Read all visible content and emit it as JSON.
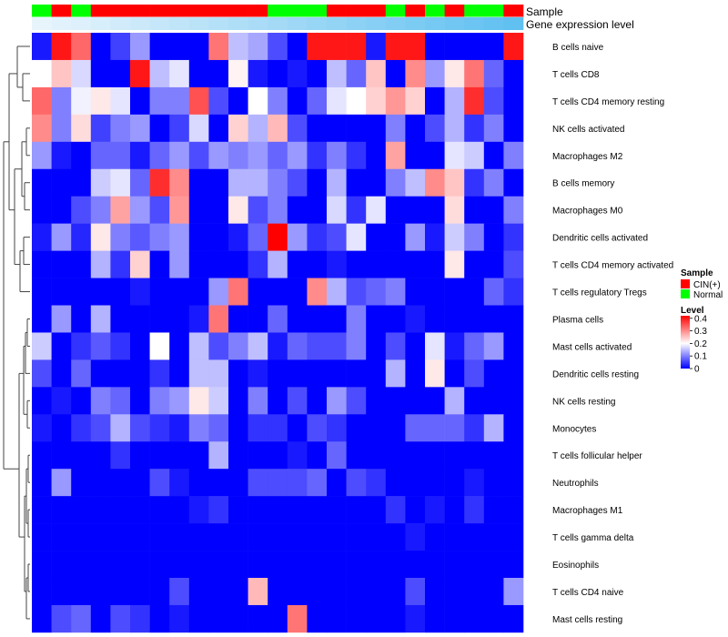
{
  "chart_data": {
    "type": "heatmap",
    "title": "",
    "annotations": {
      "sample_label": "Sample",
      "gene_label": "Gene expression level"
    },
    "legend": {
      "position": "right",
      "sample": {
        "title": "Sample",
        "items": [
          {
            "label": "CIN(+)",
            "color": "#FF0000"
          },
          {
            "label": "Normal",
            "color": "#00FF00"
          }
        ]
      },
      "level": {
        "title": "Level",
        "ticks": [
          "0.4",
          "0.3",
          "0.2",
          "0.1",
          "0"
        ],
        "tick_values": [
          0.4,
          0.3,
          0.2,
          0.1,
          0
        ],
        "range": [
          0,
          0.42
        ]
      }
    },
    "colors": {
      "low": "#0000FF",
      "mid": "#FFFFFF",
      "high": "#FF0000",
      "mid_value": 0.2,
      "max_value": 0.42
    },
    "samples": [
      "Normal",
      "CIN(+)",
      "Normal",
      "CIN(+)",
      "CIN(+)",
      "CIN(+)",
      "CIN(+)",
      "CIN(+)",
      "CIN(+)",
      "CIN(+)",
      "CIN(+)",
      "CIN(+)",
      "Normal",
      "Normal",
      "Normal",
      "CIN(+)",
      "CIN(+)",
      "CIN(+)",
      "Normal",
      "CIN(+)",
      "Normal",
      "CIN(+)",
      "Normal",
      "Normal",
      "CIN(+)"
    ],
    "gene_expression": [
      0.0,
      0.04,
      0.08,
      0.12,
      0.16,
      0.2,
      0.24,
      0.28,
      0.32,
      0.36,
      0.4,
      0.44,
      0.48,
      0.52,
      0.56,
      0.6,
      0.64,
      0.68,
      0.72,
      0.76,
      0.8,
      0.84,
      0.88,
      0.92,
      0.96
    ],
    "rows": [
      "B cells naive",
      "T cells CD8",
      "T cells CD4 memory resting",
      "NK cells activated",
      "Macrophages M2",
      "B cells memory",
      "Macrophages M0",
      "Dendritic cells activated",
      "T cells CD4 memory activated",
      "T cells regulatory  Tregs",
      "Plasma cells",
      "Mast cells activated",
      "Dendritic cells resting",
      "NK cells resting",
      "Monocytes",
      "T cells follicular helper",
      "Neutrophils",
      "Macrophages M1",
      "T cells gamma delta",
      "Eosinophils",
      "T cells CD4 naive",
      "Mast cells resting"
    ],
    "values": [
      [
        0.02,
        0.4,
        0.33,
        0.0,
        0.05,
        0.12,
        0.0,
        0.0,
        0.0,
        0.32,
        0.15,
        0.13,
        0.06,
        0.0,
        0.4,
        0.4,
        0.4,
        0.02,
        0.4,
        0.4,
        0.0,
        0.0,
        0.0,
        0.0,
        0.4
      ],
      [
        0.2,
        0.25,
        0.17,
        0.0,
        0.0,
        0.4,
        0.15,
        0.18,
        0.0,
        0.0,
        0.21,
        0.02,
        0.0,
        0.02,
        0.0,
        0.15,
        0.08,
        0.25,
        0.0,
        0.3,
        0.12,
        0.22,
        0.32,
        0.08,
        0.0
      ],
      [
        0.33,
        0.1,
        0.19,
        0.22,
        0.18,
        0.0,
        0.1,
        0.1,
        0.35,
        0.06,
        0.0,
        0.2,
        0.1,
        0.0,
        0.08,
        0.18,
        0.2,
        0.24,
        0.29,
        0.24,
        0.0,
        0.14,
        0.38,
        0.06,
        0.0
      ],
      [
        0.3,
        0.1,
        0.23,
        0.05,
        0.1,
        0.12,
        0.0,
        0.05,
        0.17,
        0.0,
        0.24,
        0.14,
        0.26,
        0.06,
        0.0,
        0.0,
        0.0,
        0.0,
        0.1,
        0.0,
        0.06,
        0.14,
        0.04,
        0.1,
        0.0
      ],
      [
        0.12,
        0.02,
        0.0,
        0.08,
        0.08,
        0.02,
        0.08,
        0.12,
        0.06,
        0.12,
        0.1,
        0.12,
        0.08,
        0.12,
        0.04,
        0.1,
        0.04,
        0.0,
        0.28,
        0.0,
        0.0,
        0.18,
        0.16,
        0.0,
        0.1
      ],
      [
        0.0,
        0.0,
        0.0,
        0.16,
        0.18,
        0.08,
        0.38,
        0.3,
        0.0,
        0.0,
        0.14,
        0.14,
        0.1,
        0.06,
        0.0,
        0.14,
        0.0,
        0.0,
        0.1,
        0.15,
        0.3,
        0.25,
        0.04,
        0.1,
        0.0
      ],
      [
        0.0,
        0.0,
        0.06,
        0.1,
        0.28,
        0.12,
        0.06,
        0.29,
        0.0,
        0.0,
        0.22,
        0.06,
        0.1,
        0.0,
        0.0,
        0.17,
        0.04,
        0.18,
        0.0,
        0.0,
        0.0,
        0.23,
        0.0,
        0.0,
        0.1
      ],
      [
        0.02,
        0.12,
        0.03,
        0.22,
        0.1,
        0.07,
        0.1,
        0.12,
        0.0,
        0.0,
        0.02,
        0.08,
        0.42,
        0.12,
        0.04,
        0.06,
        0.18,
        0.0,
        0.0,
        0.12,
        0.02,
        0.16,
        0.1,
        0.0,
        0.04
      ],
      [
        0.0,
        0.0,
        0.0,
        0.14,
        0.04,
        0.24,
        0.0,
        0.12,
        0.0,
        0.0,
        0.0,
        0.04,
        0.14,
        0.0,
        0.0,
        0.02,
        0.0,
        0.0,
        0.0,
        0.0,
        0.0,
        0.22,
        0.0,
        0.0,
        0.06
      ],
      [
        0.0,
        0.0,
        0.0,
        0.0,
        0.0,
        0.02,
        0.0,
        0.0,
        0.0,
        0.12,
        0.32,
        0.0,
        0.0,
        0.0,
        0.3,
        0.14,
        0.06,
        0.08,
        0.1,
        0.0,
        0.0,
        0.0,
        0.0,
        0.08,
        0.04
      ],
      [
        0.0,
        0.12,
        0.0,
        0.14,
        0.0,
        0.0,
        0.0,
        0.0,
        0.02,
        0.32,
        0.0,
        0.0,
        0.08,
        0.0,
        0.0,
        0.0,
        0.1,
        0.0,
        0.0,
        0.02,
        0.0,
        0.0,
        0.0,
        0.0,
        0.0
      ],
      [
        0.16,
        0.0,
        0.04,
        0.07,
        0.04,
        0.0,
        0.2,
        0.0,
        0.15,
        0.06,
        0.1,
        0.15,
        0.02,
        0.08,
        0.06,
        0.06,
        0.1,
        0.0,
        0.06,
        0.0,
        0.18,
        0.02,
        0.08,
        0.12,
        0.0
      ],
      [
        0.06,
        0.0,
        0.08,
        0.0,
        0.0,
        0.0,
        0.04,
        0.0,
        0.15,
        0.15,
        0.0,
        0.02,
        0.0,
        0.0,
        0.0,
        0.0,
        0.0,
        0.0,
        0.14,
        0.0,
        0.22,
        0.0,
        0.06,
        0.0,
        0.0
      ],
      [
        0.0,
        0.02,
        0.0,
        0.1,
        0.08,
        0.0,
        0.1,
        0.12,
        0.22,
        0.16,
        0.0,
        0.1,
        0.0,
        0.06,
        0.0,
        0.12,
        0.06,
        0.0,
        0.0,
        0.0,
        0.0,
        0.14,
        0.0,
        0.0,
        0.0
      ],
      [
        0.02,
        0.0,
        0.04,
        0.06,
        0.14,
        0.06,
        0.04,
        0.02,
        0.1,
        0.08,
        0.0,
        0.04,
        0.04,
        0.0,
        0.06,
        0.04,
        0.0,
        0.0,
        0.0,
        0.08,
        0.08,
        0.08,
        0.04,
        0.14,
        0.0
      ],
      [
        0.0,
        0.0,
        0.0,
        0.0,
        0.04,
        0.0,
        0.0,
        0.0,
        0.0,
        0.14,
        0.0,
        0.0,
        0.0,
        0.02,
        0.0,
        0.08,
        0.0,
        0.0,
        0.0,
        0.0,
        0.0,
        0.0,
        0.0,
        0.0,
        0.0
      ],
      [
        0.0,
        0.12,
        0.0,
        0.0,
        0.0,
        0.0,
        0.06,
        0.02,
        0.0,
        0.0,
        0.0,
        0.06,
        0.06,
        0.06,
        0.08,
        0.0,
        0.06,
        0.04,
        0.0,
        0.0,
        0.0,
        0.0,
        0.02,
        0.0,
        0.0
      ],
      [
        0.0,
        0.0,
        0.0,
        0.0,
        0.0,
        0.0,
        0.0,
        0.0,
        0.02,
        0.04,
        0.0,
        0.0,
        0.0,
        0.0,
        0.0,
        0.0,
        0.0,
        0.0,
        0.04,
        0.0,
        0.02,
        0.0,
        0.04,
        0.0,
        0.0
      ],
      [
        0.0,
        0.0,
        0.0,
        0.0,
        0.0,
        0.0,
        0.0,
        0.0,
        0.0,
        0.0,
        0.0,
        0.0,
        0.0,
        0.0,
        0.0,
        0.0,
        0.0,
        0.0,
        0.0,
        0.02,
        0.0,
        0.0,
        0.0,
        0.0,
        0.0
      ],
      [
        0.0,
        0.0,
        0.0,
        0.0,
        0.0,
        0.0,
        0.0,
        0.0,
        0.0,
        0.0,
        0.0,
        0.0,
        0.0,
        0.0,
        0.0,
        0.0,
        0.0,
        0.0,
        0.0,
        0.0,
        0.0,
        0.0,
        0.0,
        0.0,
        0.0
      ],
      [
        0.0,
        0.0,
        0.0,
        0.0,
        0.0,
        0.0,
        0.0,
        0.06,
        0.0,
        0.0,
        0.0,
        0.26,
        0.0,
        0.0,
        0.0,
        0.0,
        0.0,
        0.0,
        0.0,
        0.06,
        0.0,
        0.0,
        0.0,
        0.0,
        0.12
      ],
      [
        0.0,
        0.06,
        0.08,
        0.0,
        0.06,
        0.04,
        0.0,
        0.02,
        0.0,
        0.0,
        0.0,
        0.0,
        0.0,
        0.32,
        0.0,
        0.0,
        0.0,
        0.0,
        0.0,
        0.02,
        0.0,
        0.0,
        0.0,
        0.0,
        0.0
      ]
    ]
  }
}
